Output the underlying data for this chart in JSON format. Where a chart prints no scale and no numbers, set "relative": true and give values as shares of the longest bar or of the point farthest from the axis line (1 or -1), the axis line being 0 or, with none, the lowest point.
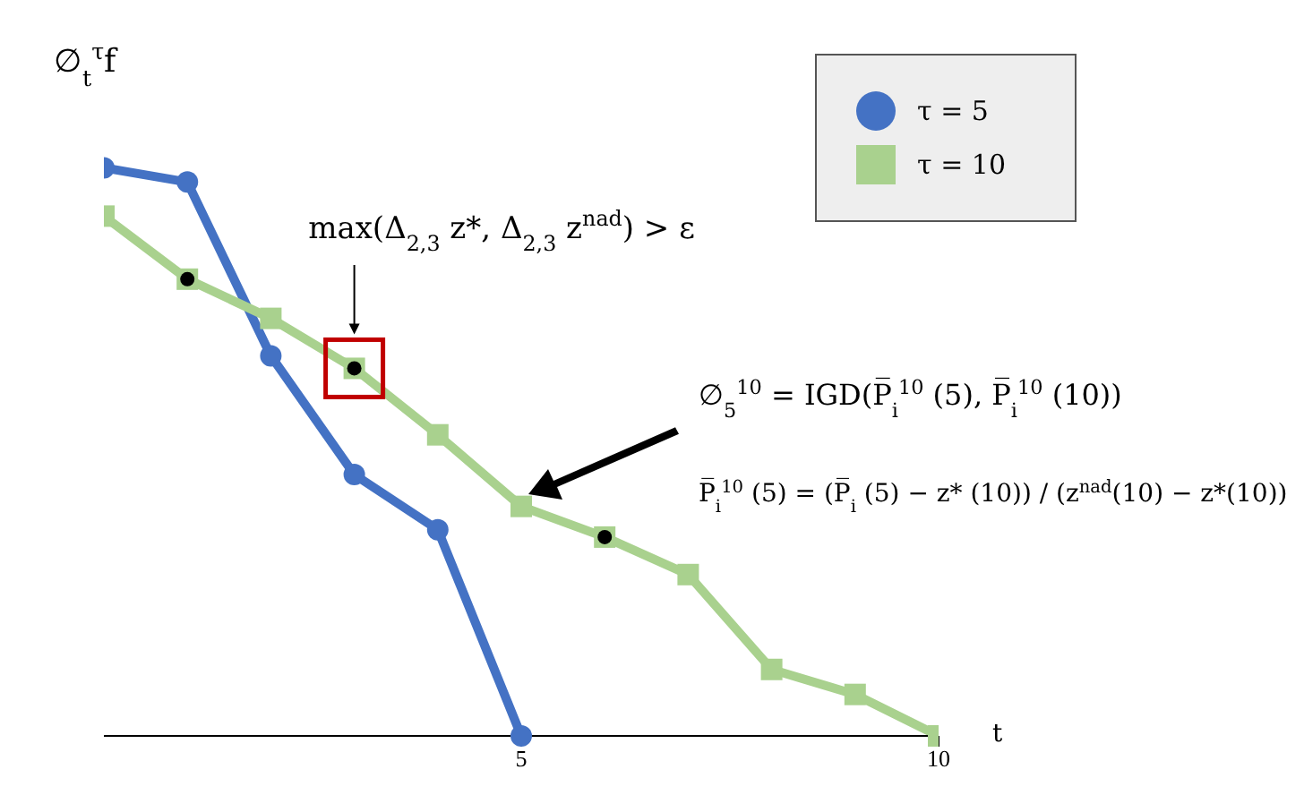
{
  "chart_data": {
    "type": "line",
    "relative": true,
    "ylabel": "∅$_{t}$$^{τ}$f",
    "xlabel": "t",
    "xlim": [
      0,
      10
    ],
    "xticks": [
      5,
      10
    ],
    "legend": "top right",
    "series": [
      {
        "name": "τ = 5",
        "color": "#4472c4",
        "marker": "circle",
        "x": [
          0,
          1,
          2,
          3,
          4,
          5
        ],
        "values": [
          1,
          0.975,
          0.669,
          0.46,
          0.363,
          0
        ]
      },
      {
        "name": "τ = 10",
        "color": "#a9d18e",
        "marker": "square",
        "x": [
          0,
          1,
          2,
          3,
          4,
          5,
          6,
          7,
          8,
          9,
          10
        ],
        "values": [
          0.915,
          0.804,
          0.735,
          0.647,
          0.53,
          0.404,
          0.35,
          0.284,
          0.117,
          0.073,
          0
        ]
      },
      {
        "type": "scatter",
        "color": "#000000",
        "marker": "circle",
        "x": [
          1,
          3,
          6
        ],
        "values": [
          0.804,
          0.647,
          0.35
        ]
      }
    ],
    "annotations": [
      "max(Δ$_{2,3}$ z*, Δ$_{2,3}$ z$^{nad}$) > ε",
      "∅$_{5}$$^{10}$ = IGD(P̅$_{i}$$^{10}$ (5), P̅$_{i}$$^{10}$ (10))",
      "P̅$_{i}$$^{10}$ (5) = (P̅$_{i}$ (5) − z* (10)) / (z$^{nad}$(10) − z*(10))"
    ]
  }
}
